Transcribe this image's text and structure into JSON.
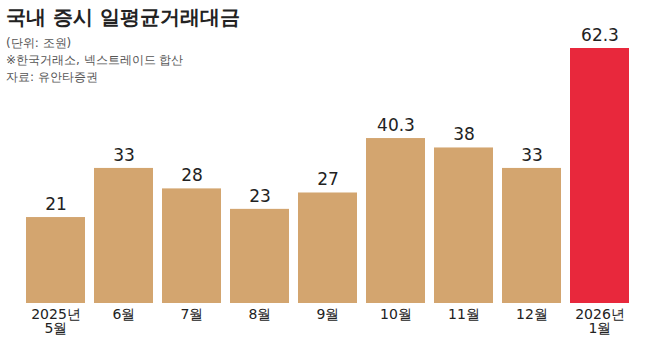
{
  "chart_data": {
    "type": "bar",
    "title": "국내 증시 일평균거래대금",
    "subtitle": "(단위: 조원)",
    "note": "※한국거래소, 넥스트레이드 합산",
    "source": "자료: 유안타증권",
    "categories": [
      "2025년\n5월",
      "6월",
      "7월",
      "8월",
      "9월",
      "10월",
      "11월",
      "12월",
      "2026년\n1월"
    ],
    "values": [
      21,
      33,
      28,
      23,
      27,
      40.3,
      38,
      33,
      62.3
    ],
    "colors": [
      "#d3a56f",
      "#d3a56f",
      "#d3a56f",
      "#d3a56f",
      "#d3a56f",
      "#d3a56f",
      "#d3a56f",
      "#d3a56f",
      "#e8283c"
    ],
    "ylim": [
      0,
      62.3
    ],
    "data_labels": true,
    "tick_labels": "x",
    "grid": false
  }
}
